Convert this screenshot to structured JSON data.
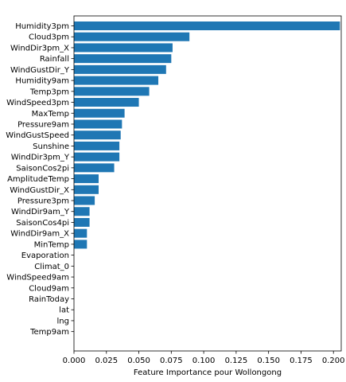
{
  "chart_data": {
    "type": "bar",
    "orientation": "horizontal",
    "title": "",
    "xlabel": "Feature Importance pour Wollongong",
    "ylabel": "",
    "xlim": [
      0,
      0.206
    ],
    "xticks": [
      "0.000",
      "0.025",
      "0.050",
      "0.075",
      "0.100",
      "0.125",
      "0.150",
      "0.175",
      "0.200"
    ],
    "grid": false,
    "bar_color": "#1f77b4",
    "categories": [
      "Humidity3pm",
      "Cloud3pm",
      "WindDir3pm_X",
      "Rainfall",
      "WindGustDir_Y",
      "Humidity9am",
      "Temp3pm",
      "WindSpeed3pm",
      "MaxTemp",
      "Pressure9am",
      "WindGustSpeed",
      "Sunshine",
      "WindDir3pm_Y",
      "SaisonCos2pi",
      "AmplitudeTemp",
      "WindGustDir_X",
      "Pressure3pm",
      "WindDir9am_Y",
      "SaisonCos4pi",
      "WindDir9am_X",
      "MinTemp",
      "Evaporation",
      "Climat_0",
      "WindSpeed9am",
      "Cloud9am",
      "RainToday",
      "lat",
      "lng",
      "Temp9am"
    ],
    "values": [
      0.205,
      0.089,
      0.076,
      0.075,
      0.071,
      0.065,
      0.058,
      0.05,
      0.039,
      0.037,
      0.036,
      0.035,
      0.035,
      0.031,
      0.019,
      0.019,
      0.016,
      0.012,
      0.012,
      0.01,
      0.01,
      0.0,
      0.0,
      0.0,
      0.0,
      0.0,
      0.0,
      0.0,
      0.0
    ]
  }
}
